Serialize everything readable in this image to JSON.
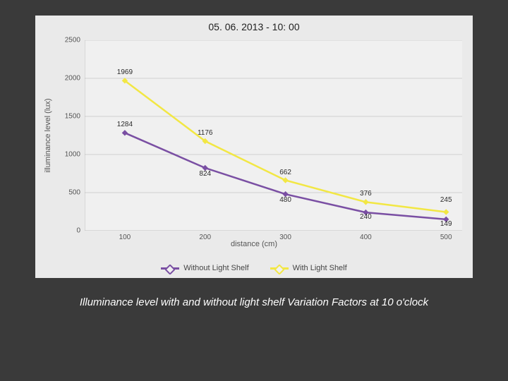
{
  "slide": {
    "background_color": "#3a3a3a",
    "caption": "Illuminance level with and without light shelf Variation Factors at 10 o'clock"
  },
  "chart": {
    "type": "line",
    "title": "05. 06. 2013 - 10: 00",
    "panel_color": "#eaeaea",
    "plot_bg_color": "#f0f0f0",
    "xlabel": "distance (cm)",
    "ylabel": "illuminance level (lux)",
    "xlim": [
      50,
      520
    ],
    "ylim": [
      0,
      2500
    ],
    "ytick_step": 500,
    "xticks": [
      100,
      200,
      300,
      400,
      500
    ],
    "grid_color": "#cfcfcf",
    "axis_color": "#bfbfbf",
    "label_fontsize": 11,
    "tick_fontsize": 10,
    "title_fontsize": 14,
    "line_width": 2.5,
    "marker": "diamond",
    "marker_size": 7,
    "x": [
      100,
      200,
      300,
      400,
      500
    ],
    "series": [
      {
        "name": "Without Light Shelf",
        "color": "#7a4fa3",
        "y": [
          1284,
          824,
          480,
          240,
          149
        ],
        "labels": [
          "1284",
          "824",
          "480",
          "240",
          "149"
        ],
        "label_dy": [
          -6,
          14,
          14,
          12,
          12
        ]
      },
      {
        "name": "With Light Shelf",
        "color": "#f2e744",
        "y": [
          1969,
          1176,
          662,
          376,
          245
        ],
        "labels": [
          "1969",
          "1176",
          "662",
          "376",
          "245"
        ],
        "label_dy": [
          -6,
          -6,
          -6,
          -6,
          -12
        ]
      }
    ],
    "legend_position": "bottom"
  }
}
